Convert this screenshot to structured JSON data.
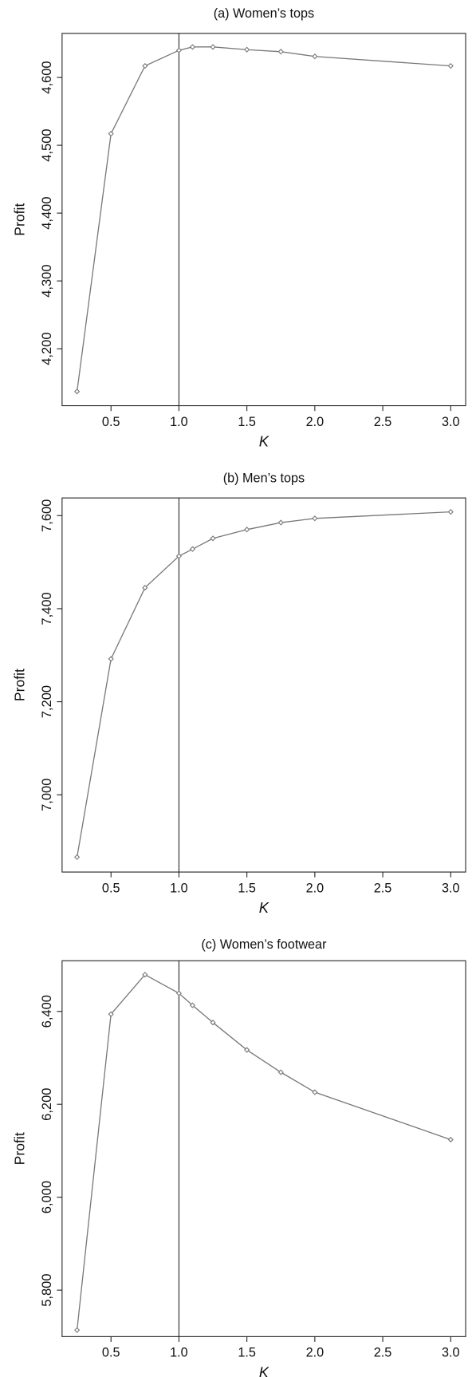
{
  "chart_data": [
    {
      "type": "line",
      "title": "(a) Women’s tops",
      "x_label": "K",
      "y_label": "Profit",
      "x": [
        0.25,
        0.5,
        0.75,
        1.0,
        1.1,
        1.25,
        1.5,
        1.75,
        2.0,
        3.0
      ],
      "series": [
        {
          "color": "#777777",
          "values": [
            4137,
            4517,
            4617,
            4640,
            4645,
            4645,
            4641,
            4638,
            4631,
            4617
          ]
        }
      ],
      "xlim": [
        0.14,
        3.11
      ],
      "xticks": [
        0.5,
        {
          "value": 1,
          "label": "1.0"
        },
        1.5,
        {
          "value": 2,
          "label": "2.0"
        },
        2.5,
        {
          "value": 3,
          "label": "3.0"
        }
      ],
      "ylim": [
        4116,
        4665
      ],
      "yticks": [
        {
          "value": 4200,
          "label": "4,200"
        },
        {
          "value": 4300,
          "label": "4,300"
        },
        {
          "value": 4400,
          "label": "4,400"
        },
        {
          "value": 4500,
          "label": "4,500"
        },
        {
          "value": 4600,
          "label": "4,600"
        }
      ],
      "reference_line_x": 1
    },
    {
      "type": "line",
      "title": "(b) Men’s tops",
      "x_label": "K",
      "y_label": "Profit",
      "x": [
        0.25,
        0.5,
        0.75,
        1.0,
        1.1,
        1.25,
        1.5,
        1.75,
        2.0,
        3.0
      ],
      "series": [
        {
          "color": "#777777",
          "values": [
            6866,
            7292,
            7445,
            7513,
            7528,
            7551,
            7570,
            7585,
            7594,
            7608
          ]
        }
      ],
      "xlim": [
        0.14,
        3.11
      ],
      "xticks": [
        0.5,
        {
          "value": 1,
          "label": "1.0"
        },
        1.5,
        {
          "value": 2,
          "label": "2.0"
        },
        2.5,
        {
          "value": 3,
          "label": "3.0"
        }
      ],
      "ylim": [
        6834,
        7638
      ],
      "yticks": [
        {
          "value": 7000,
          "label": "7,000"
        },
        {
          "value": 7200,
          "label": "7,200"
        },
        {
          "value": 7400,
          "label": "7,400"
        },
        {
          "value": 7600,
          "label": "7,600"
        }
      ],
      "reference_line_x": 1
    },
    {
      "type": "line",
      "title": "(c) Women’s footwear",
      "x_label": "K",
      "y_label": "Profit",
      "x": [
        0.25,
        0.5,
        0.75,
        1.0,
        1.1,
        1.25,
        1.5,
        1.75,
        2.0,
        3.0
      ],
      "series": [
        {
          "color": "#777777",
          "values": [
            5714,
            6394,
            6479,
            6439,
            6413,
            6376,
            6317,
            6269,
            6226,
            6124
          ]
        }
      ],
      "xlim": [
        0.14,
        3.11
      ],
      "xticks": [
        0.5,
        {
          "value": 1,
          "label": "1.0"
        },
        1.5,
        {
          "value": 2,
          "label": "2.0"
        },
        2.5,
        {
          "value": 3,
          "label": "3.0"
        }
      ],
      "ylim": [
        5700,
        6509
      ],
      "yticks": [
        {
          "value": 5800,
          "label": "5,800"
        },
        {
          "value": 6000,
          "label": "6,000"
        },
        {
          "value": 6200,
          "label": "6,200"
        },
        {
          "value": 6400,
          "label": "6,400"
        }
      ],
      "reference_line_x": 1
    }
  ]
}
